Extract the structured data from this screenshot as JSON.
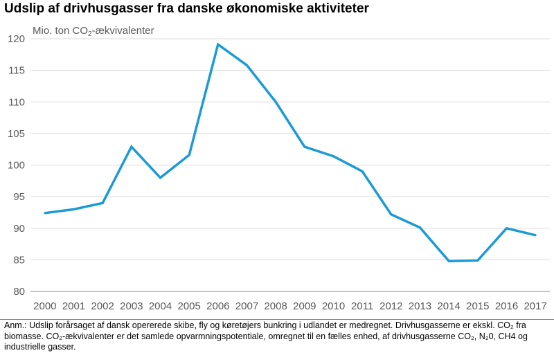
{
  "title": "Udslip af drivhusgasser fra danske økonomiske aktiviteter",
  "unit_label": {
    "prefix": "Mio. ton CO",
    "subscript": "2",
    "suffix": "-ækvivalenter"
  },
  "note": "Anm.: Udslip forårsaget af dansk opererede skibe, fly og køretøjers bunkring i udlandet er medregnet. Drivhusgasserne er ekskl. CO₂ fra biomasse. CO₂-ækvivalenter er det samlede opvarmningspotentiale, omregnet til en fælles enhed, af drivhusgasserne CO₂, N₂0, CH4 og industrielle gasser.",
  "colors": {
    "line": "#1b9ad6",
    "grid": "#d9d9d9",
    "axis": "#8c8c8c"
  },
  "chart_data": {
    "type": "line",
    "title": "Udslip af drivhusgasser fra danske økonomiske aktiviteter",
    "ylabel": "Mio. ton CO2-ækvivalenter",
    "xlabel": "",
    "ylim": [
      80,
      120
    ],
    "yticks": [
      80,
      85,
      90,
      95,
      100,
      105,
      110,
      115,
      120
    ],
    "grid": true,
    "categories": [
      "2000",
      "2001",
      "2002",
      "2003",
      "2004",
      "2005",
      "2006",
      "2007",
      "2008",
      "2009",
      "2010",
      "2011",
      "2012",
      "2013",
      "2014",
      "2015",
      "2016",
      "2017"
    ],
    "series": [
      {
        "values": [
          92.4,
          93.0,
          94.0,
          102.9,
          98.0,
          101.6,
          119.1,
          115.8,
          110.0,
          102.9,
          101.4,
          99.0,
          92.2,
          90.1,
          84.8,
          84.9,
          90.0,
          88.9
        ]
      }
    ]
  }
}
